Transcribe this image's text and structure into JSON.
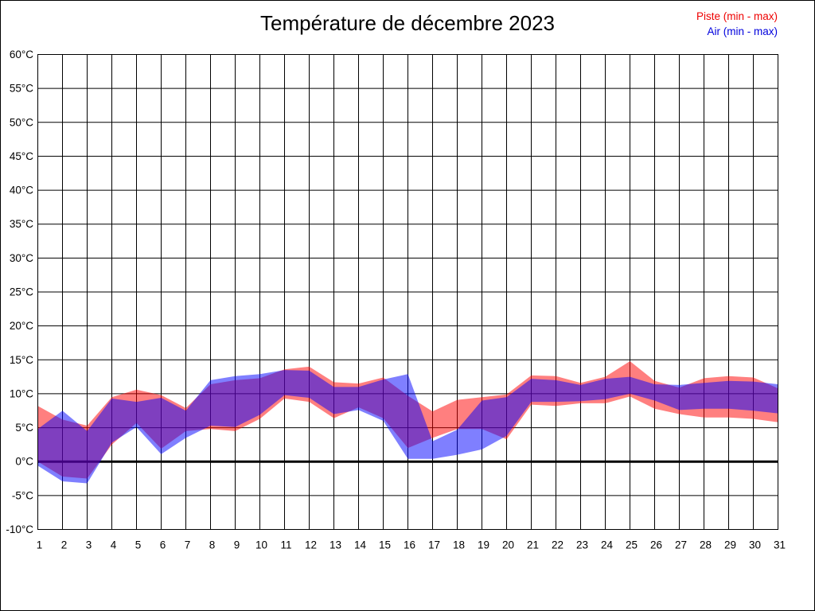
{
  "page": {
    "background": "#ffffff",
    "border_color": "#000000"
  },
  "title": "Température de décembre 2023",
  "legend": {
    "position": "top-right",
    "items": [
      {
        "label": "Piste (min - max)",
        "color": "#ee0000",
        "series": "piste"
      },
      {
        "label": "Air (min - max)",
        "color": "#0000dd",
        "series": "air"
      }
    ]
  },
  "chart_data": {
    "type": "area",
    "subtype": "min-max-range-bands",
    "title": "Température de décembre 2023",
    "xlabel": "",
    "ylabel": "",
    "grid": true,
    "zero_line_bold": true,
    "x": [
      1,
      2,
      3,
      4,
      5,
      6,
      7,
      8,
      9,
      10,
      11,
      12,
      13,
      14,
      15,
      16,
      17,
      18,
      19,
      20,
      21,
      22,
      23,
      24,
      25,
      26,
      27,
      28,
      29,
      30,
      31
    ],
    "xtick_labels": [
      "1",
      "2",
      "3",
      "4",
      "5",
      "6",
      "7",
      "8",
      "9",
      "10",
      "11",
      "12",
      "13",
      "14",
      "15",
      "16",
      "17",
      "18",
      "19",
      "20",
      "21",
      "22",
      "23",
      "24",
      "25",
      "26",
      "27",
      "28",
      "29",
      "30",
      "31"
    ],
    "ylim": [
      -10,
      60
    ],
    "ytick_step": 5,
    "ytick_labels": [
      "-10°C",
      "-5°C",
      "0°C",
      "5°C",
      "10°C",
      "15°C",
      "20°C",
      "25°C",
      "30°C",
      "35°C",
      "40°C",
      "45°C",
      "50°C",
      "55°C",
      "60°C"
    ],
    "series": [
      {
        "id": "piste",
        "name": "Piste (min - max)",
        "color": "#ff0000",
        "fill_opacity": 0.5,
        "min": [
          0.0,
          -2.2,
          -2.5,
          2.5,
          5.7,
          1.9,
          4.5,
          4.8,
          4.5,
          6.3,
          9.3,
          8.8,
          6.4,
          8.0,
          6.4,
          2.0,
          3.5,
          4.8,
          4.8,
          3.3,
          8.4,
          8.2,
          8.6,
          8.6,
          9.6,
          7.8,
          7.0,
          6.5,
          6.5,
          6.3,
          5.8
        ],
        "max": [
          8.2,
          6.2,
          5.3,
          9.5,
          10.6,
          9.8,
          7.9,
          11.4,
          12.0,
          12.3,
          13.6,
          14.0,
          11.7,
          11.5,
          12.4,
          9.7,
          7.4,
          9.1,
          9.5,
          9.9,
          12.7,
          12.6,
          11.6,
          12.5,
          14.8,
          11.9,
          10.9,
          12.3,
          12.6,
          12.4,
          10.8
        ]
      },
      {
        "id": "air",
        "name": "Air (min - max)",
        "color": "#0000ff",
        "fill_opacity": 0.5,
        "min": [
          -0.6,
          -2.9,
          -3.2,
          2.8,
          5.1,
          1.1,
          3.5,
          5.3,
          5.1,
          6.9,
          9.8,
          9.4,
          7.0,
          7.6,
          6.0,
          0.4,
          0.4,
          1.0,
          1.8,
          3.8,
          8.8,
          8.8,
          8.9,
          9.2,
          10.0,
          9.0,
          7.6,
          7.8,
          7.8,
          7.5,
          7.1
        ],
        "max": [
          4.8,
          7.5,
          4.5,
          9.3,
          8.8,
          9.4,
          7.5,
          12.0,
          12.6,
          12.9,
          13.5,
          13.4,
          11.0,
          11.0,
          12.1,
          12.9,
          3.0,
          4.7,
          9.0,
          9.5,
          12.2,
          12.0,
          11.3,
          12.2,
          12.5,
          11.4,
          11.3,
          11.6,
          11.9,
          11.8,
          11.4
        ]
      }
    ]
  }
}
